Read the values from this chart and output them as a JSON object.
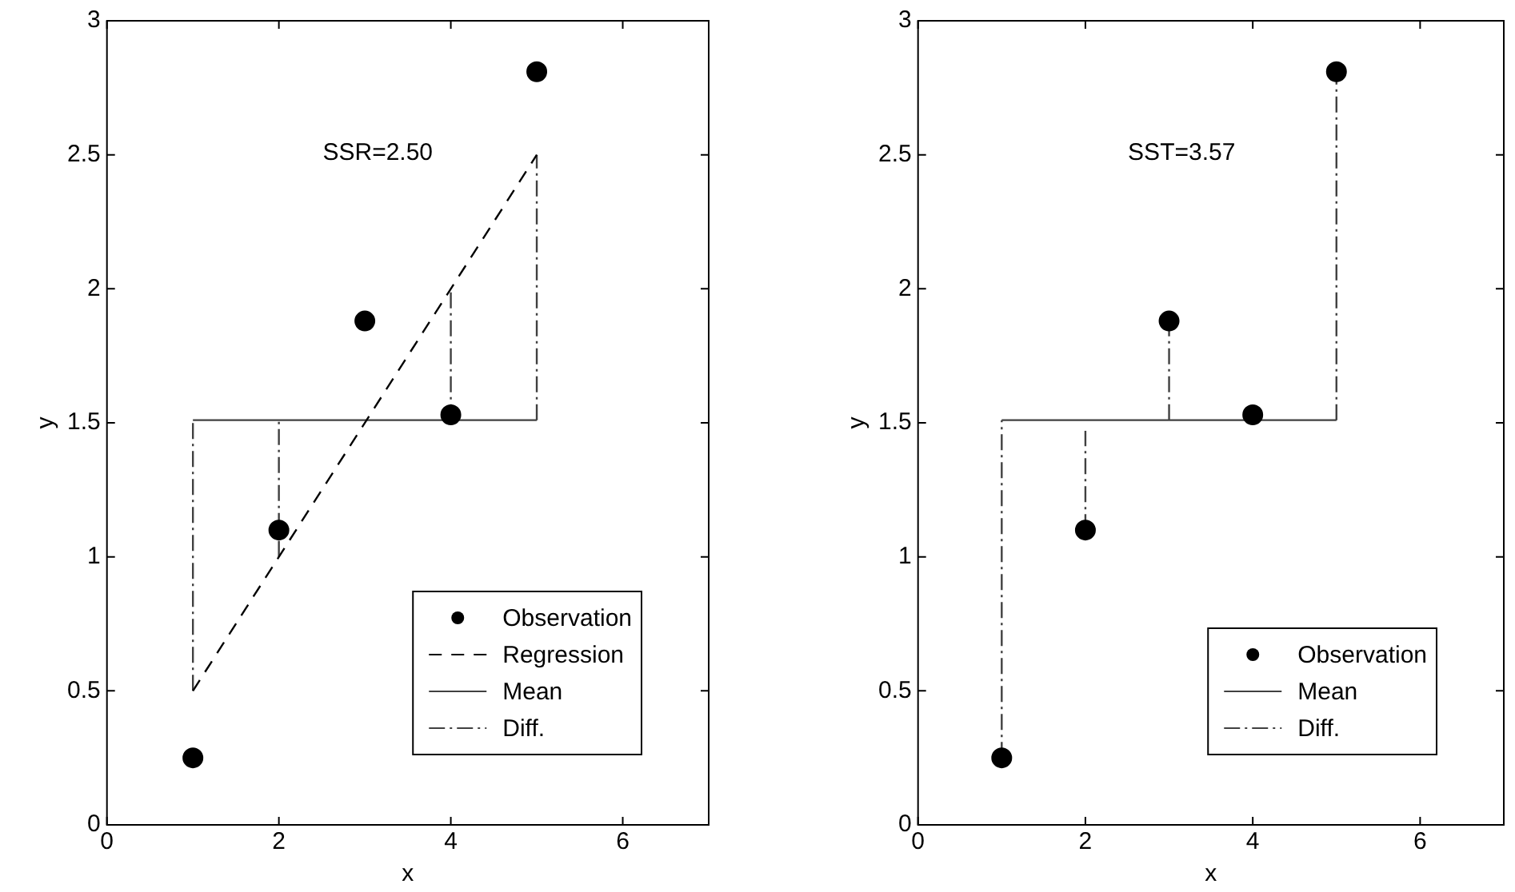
{
  "chart_data": [
    {
      "type": "scatter",
      "annotations": [
        "SSR=2.50"
      ],
      "xlabel": "x",
      "ylabel": "y",
      "xlim": [
        0,
        7
      ],
      "ylim": [
        0,
        3
      ],
      "xticks": [
        0,
        2,
        4,
        6
      ],
      "yticks": [
        0,
        0.5,
        1,
        1.5,
        2,
        2.5,
        3
      ],
      "grid": false,
      "legend": "bottom right",
      "series": [
        {
          "name": "Observation",
          "type": "scatter",
          "marker": "circle",
          "color": "#000000",
          "x": [
            1,
            2,
            3,
            4,
            5
          ],
          "values": [
            0.25,
            1.1,
            1.88,
            1.53,
            2.81
          ]
        },
        {
          "name": "Regression",
          "type": "line",
          "line_style": "dashed",
          "color": "#000000",
          "x": [
            1,
            5
          ],
          "values": [
            0.5,
            2.5
          ]
        },
        {
          "name": "Mean",
          "type": "line",
          "line_style": "solid",
          "color": "#404040",
          "x": [
            1,
            5
          ],
          "values": [
            1.51,
            1.51
          ]
        },
        {
          "name": "Diff.",
          "type": "line",
          "line_style": "dotted",
          "color": "#404040",
          "x": [
            1,
            1,
            null,
            2,
            2,
            null,
            4,
            4,
            null,
            5,
            5
          ],
          "values": [
            0.5,
            1.51,
            null,
            1.0,
            1.51,
            null,
            1.51,
            2.0,
            null,
            1.51,
            2.5
          ]
        }
      ]
    },
    {
      "type": "scatter",
      "annotations": [
        "SST=3.57"
      ],
      "xlabel": "x",
      "ylabel": "y",
      "xlim": [
        0,
        7
      ],
      "ylim": [
        0,
        3
      ],
      "xticks": [
        0,
        2,
        4,
        6
      ],
      "yticks": [
        0,
        0.5,
        1,
        1.5,
        2,
        2.5,
        3
      ],
      "grid": false,
      "legend": "bottom right",
      "series": [
        {
          "name": "Observation",
          "type": "scatter",
          "marker": "circle",
          "color": "#000000",
          "x": [
            1,
            2,
            3,
            4,
            5
          ],
          "values": [
            0.25,
            1.1,
            1.88,
            1.53,
            2.81
          ]
        },
        {
          "name": "Mean",
          "type": "line",
          "line_style": "solid",
          "color": "#404040",
          "x": [
            1,
            5
          ],
          "values": [
            1.51,
            1.51
          ]
        },
        {
          "name": "Diff.",
          "type": "line",
          "line_style": "dotted",
          "color": "#404040",
          "x": [
            1,
            1,
            null,
            2,
            2,
            null,
            3,
            3,
            null,
            5,
            5
          ],
          "values": [
            0.25,
            1.51,
            null,
            1.1,
            1.47,
            null,
            1.51,
            1.88,
            null,
            1.51,
            2.81
          ]
        }
      ]
    }
  ]
}
